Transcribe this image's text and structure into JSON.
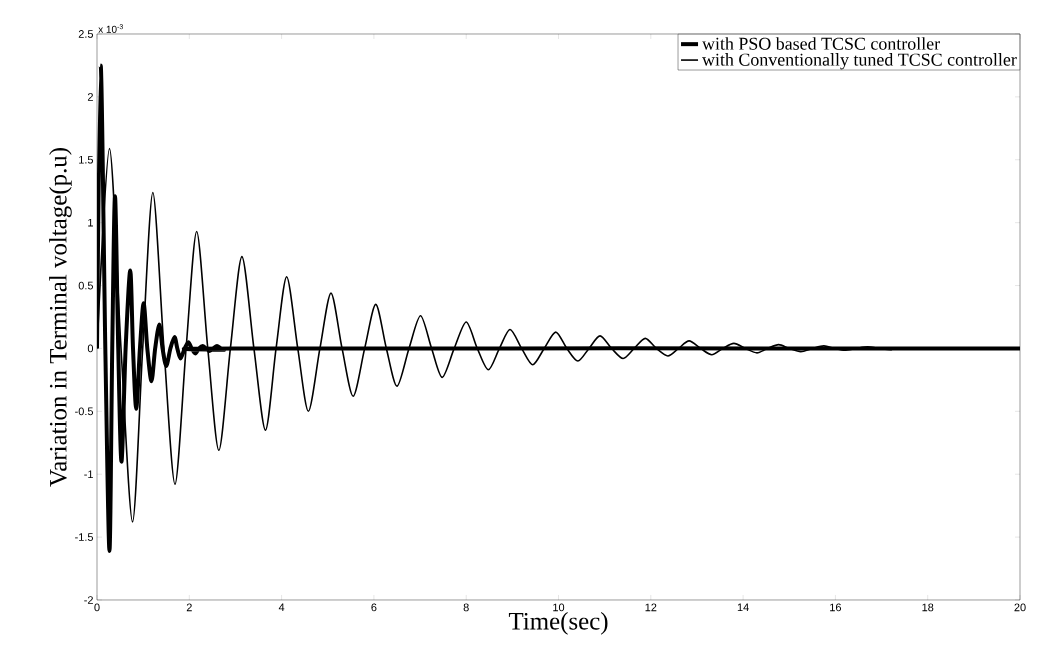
{
  "chart_data": {
    "type": "line",
    "xlabel": "Time(sec)",
    "ylabel": "Variation in Terminal voltage(p.u)",
    "annotations": [
      "x 10$^{-3}$"
    ],
    "xlim": [
      0,
      20
    ],
    "ylim": [
      -2,
      2.5
    ],
    "xticks": [
      0,
      2,
      4,
      6,
      8,
      10,
      12,
      14,
      16,
      18,
      20
    ],
    "yticks": [
      -2,
      -1.5,
      -1,
      -0.5,
      0,
      0.5,
      1,
      1.5,
      2,
      2.5
    ],
    "legend": "top right",
    "series": [
      {
        "name": "with PSO based TCSC controller",
        "color": "#000000",
        "x": [
          0,
          0.08,
          0.18,
          0.27,
          0.33,
          0.39,
          0.46,
          0.53,
          0.62,
          0.72,
          0.78,
          0.85,
          0.93,
          1.01,
          1.09,
          1.18,
          1.26,
          1.35,
          1.42,
          1.5,
          1.59,
          1.68,
          1.74,
          1.81,
          1.9,
          1.98,
          2.05,
          2.13,
          2.21,
          2.29,
          2.36,
          2.44,
          2.52,
          2.6,
          2.68,
          2.76,
          3.0,
          20
        ],
        "values": [
          0,
          2.25,
          0,
          -1.61,
          0,
          1.21,
          0,
          -0.9,
          0,
          0.62,
          0,
          -0.48,
          0,
          0.36,
          0,
          -0.26,
          0,
          0.19,
          0,
          -0.14,
          0,
          0.09,
          0,
          -0.08,
          0,
          0.05,
          0,
          -0.04,
          0,
          0.02,
          0,
          -0.02,
          0,
          0.02,
          0,
          -0.01,
          0,
          0
        ]
      },
      {
        "name": "with Conventionally tuned TCSC controller",
        "color": "#000000",
        "x": [
          0,
          0.27,
          0.52,
          0.77,
          0.99,
          1.21,
          1.45,
          1.69,
          1.93,
          2.16,
          2.4,
          2.64,
          2.89,
          3.14,
          3.4,
          3.65,
          3.88,
          4.11,
          4.35,
          4.58,
          4.83,
          5.07,
          5.31,
          5.55,
          5.8,
          6.04,
          6.27,
          6.5,
          6.76,
          7.01,
          7.25,
          7.48,
          7.74,
          8.0,
          8.24,
          8.48,
          8.72,
          8.95,
          9.2,
          9.44,
          9.69,
          9.94,
          10.18,
          10.42,
          10.66,
          10.9,
          11.15,
          11.4,
          11.64,
          11.88,
          12.12,
          12.37,
          12.6,
          12.83,
          13.08,
          13.32,
          13.56,
          13.8,
          14.05,
          14.3,
          14.53,
          14.77,
          15.0,
          15.25,
          15.5,
          15.75,
          15.98,
          16.2,
          16.45,
          16.7,
          16.95,
          17.2,
          17.45,
          20
        ],
        "values": [
          0,
          1.59,
          0,
          -1.38,
          0,
          1.24,
          0,
          -1.08,
          0,
          0.93,
          0,
          -0.81,
          0,
          0.73,
          0,
          -0.65,
          0,
          0.57,
          0,
          -0.5,
          0,
          0.44,
          0,
          -0.38,
          0,
          0.35,
          0,
          -0.3,
          0,
          0.26,
          0,
          -0.23,
          0,
          0.21,
          0,
          -0.17,
          0,
          0.15,
          0,
          -0.13,
          0,
          0.13,
          0,
          -0.1,
          0,
          0.1,
          0,
          -0.08,
          0,
          0.08,
          0,
          -0.06,
          0,
          0.06,
          0,
          -0.05,
          0,
          0.04,
          0,
          -0.035,
          0,
          0.03,
          0,
          -0.025,
          0,
          0.02,
          0,
          -0.015,
          0,
          0.012,
          0,
          -0.01,
          0,
          0
        ]
      }
    ]
  }
}
